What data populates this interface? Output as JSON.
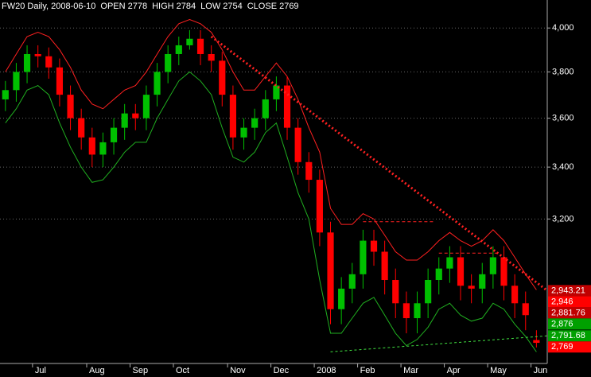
{
  "chart_data": {
    "type": "candlestick",
    "header": [
      {
        "text": "FW20 Daily, 2008-06-10",
        "color": "#ffffff"
      },
      {
        "text": "OPEN 2778",
        "color": "#3030ff"
      },
      {
        "text": "HIGH 2784",
        "color": "#3030ff"
      },
      {
        "text": "LOW 2754",
        "color": "#ff2020"
      },
      {
        "text": "CLOSE 2769",
        "color": "#3030ff"
      }
    ],
    "categories": [
      null,
      null,
      null,
      "Jul",
      null,
      null,
      null,
      null,
      "Aug",
      null,
      null,
      null,
      "Sep",
      null,
      null,
      null,
      "Oct",
      null,
      null,
      null,
      null,
      "Nov",
      null,
      null,
      null,
      "Dec",
      null,
      null,
      null,
      "2008",
      null,
      null,
      null,
      "Feb",
      null,
      null,
      null,
      "Mar",
      null,
      null,
      null,
      "Apr",
      null,
      null,
      null,
      "May",
      null,
      null,
      null,
      "Jun"
    ],
    "open": [
      3680,
      3720,
      3800,
      3880,
      3870,
      3820,
      3700,
      3600,
      3520,
      3450,
      3500,
      3560,
      3620,
      3600,
      3700,
      3800,
      3880,
      3920,
      3950,
      3880,
      3850,
      3700,
      3520,
      3560,
      3600,
      3680,
      3740,
      3560,
      3420,
      3350,
      3150,
      2880,
      2950,
      3000,
      3120,
      3080,
      2980,
      2900,
      2850,
      2900,
      2980,
      3020,
      3060,
      2960,
      2950,
      3000,
      3060,
      2960,
      2900,
      2778
    ],
    "high": [
      3760,
      3840,
      3920,
      3920,
      3910,
      3860,
      3740,
      3640,
      3560,
      3540,
      3600,
      3660,
      3660,
      3740,
      3840,
      3920,
      3960,
      3990,
      3990,
      3920,
      3890,
      3740,
      3600,
      3640,
      3720,
      3780,
      3780,
      3600,
      3460,
      3390,
      3190,
      2990,
      3040,
      3160,
      3160,
      3120,
      3020,
      2940,
      2940,
      3020,
      3060,
      3100,
      3100,
      3000,
      3040,
      3100,
      3100,
      3000,
      2940,
      2810
    ],
    "low": [
      3630,
      3670,
      3750,
      3820,
      3770,
      3650,
      3550,
      3470,
      3400,
      3400,
      3450,
      3510,
      3550,
      3550,
      3650,
      3750,
      3830,
      3900,
      3830,
      3800,
      3650,
      3470,
      3470,
      3510,
      3550,
      3630,
      3510,
      3370,
      3300,
      3100,
      2830,
      2830,
      2900,
      2950,
      3030,
      2930,
      2850,
      2800,
      2800,
      2850,
      2930,
      2970,
      2910,
      2900,
      2900,
      2950,
      2910,
      2850,
      2810,
      2754
    ],
    "close": [
      3720,
      3800,
      3880,
      3870,
      3820,
      3700,
      3600,
      3520,
      3450,
      3500,
      3560,
      3620,
      3600,
      3700,
      3800,
      3880,
      3920,
      3950,
      3880,
      3850,
      3700,
      3520,
      3560,
      3600,
      3680,
      3740,
      3560,
      3420,
      3350,
      3150,
      2880,
      2950,
      3000,
      3120,
      3080,
      2980,
      2900,
      2850,
      2900,
      2980,
      3020,
      3060,
      2960,
      2950,
      3000,
      3060,
      2960,
      2900,
      2860,
      2769
    ],
    "up_color": "#00c000",
    "down_color": "#ff0000",
    "bands": [
      {
        "color": "#ff2020",
        "values": [
          3800,
          3880,
          3960,
          3980,
          3960,
          3900,
          3820,
          3720,
          3660,
          3640,
          3680,
          3720,
          3740,
          3800,
          3880,
          3960,
          4020,
          4040,
          4020,
          3980,
          3900,
          3800,
          3720,
          3720,
          3780,
          3840,
          3780,
          3680,
          3560,
          3460,
          3240,
          3180,
          3180,
          3220,
          3200,
          3140,
          3080,
          3050,
          3050,
          3080,
          3120,
          3150,
          3120,
          3100,
          3120,
          3160,
          3120,
          3060,
          3000,
          2946
        ]
      },
      {
        "color": "#20b020",
        "values": [
          3580,
          3640,
          3720,
          3740,
          3700,
          3580,
          3480,
          3400,
          3340,
          3350,
          3400,
          3460,
          3500,
          3500,
          3600,
          3680,
          3760,
          3800,
          3760,
          3700,
          3560,
          3440,
          3420,
          3460,
          3540,
          3580,
          3440,
          3300,
          3200,
          2980,
          2800,
          2800,
          2850,
          2900,
          2920,
          2860,
          2800,
          2760,
          2780,
          2820,
          2880,
          2900,
          2860,
          2840,
          2850,
          2900,
          2880,
          2830,
          2790,
          2740
        ]
      }
    ],
    "trendlines": [
      {
        "color": "#ff2020",
        "width": 3,
        "dash": "2,3",
        "x": [
          19,
          50.5
        ],
        "y": [
          3960,
          2943.21
        ]
      },
      {
        "color": "#40e040",
        "width": 1,
        "dash": "3,3",
        "x": [
          30,
          50.5
        ],
        "y": [
          2740,
          2791.68
        ]
      },
      {
        "color": "#ff2020",
        "width": 1,
        "dash": "4,3",
        "x": [
          33,
          39.5
        ],
        "y": [
          3190,
          3190
        ]
      },
      {
        "color": "#ff2020",
        "width": 1,
        "dash": "4,3",
        "x": [
          40,
          45.5
        ],
        "y": [
          3075,
          3075
        ]
      }
    ],
    "ylim": [
      2703,
      4133
    ],
    "log_scale": true,
    "yticks": [
      {
        "value": 3200,
        "label": "3,200"
      },
      {
        "value": 3400,
        "label": "3,400"
      },
      {
        "value": 3600,
        "label": "3,600"
      },
      {
        "value": 3800,
        "label": "3,800"
      },
      {
        "value": 4000,
        "label": "4,000"
      }
    ],
    "grid": true,
    "price_labels": [
      {
        "value": 2943.21,
        "label": "2,943.21",
        "color": "#c00000"
      },
      {
        "value": 2946,
        "label": "2,946",
        "color": "#ff0000"
      },
      {
        "value": 2881.76,
        "label": "2,881.76",
        "color": "#c00000"
      },
      {
        "value": 2876,
        "label": "2,876",
        "color": "#00a000"
      },
      {
        "value": 2791.68,
        "label": "2,791.68",
        "color": "#00a000"
      },
      {
        "value": 2769,
        "label": "2,769",
        "color": "#ff0000"
      }
    ]
  }
}
